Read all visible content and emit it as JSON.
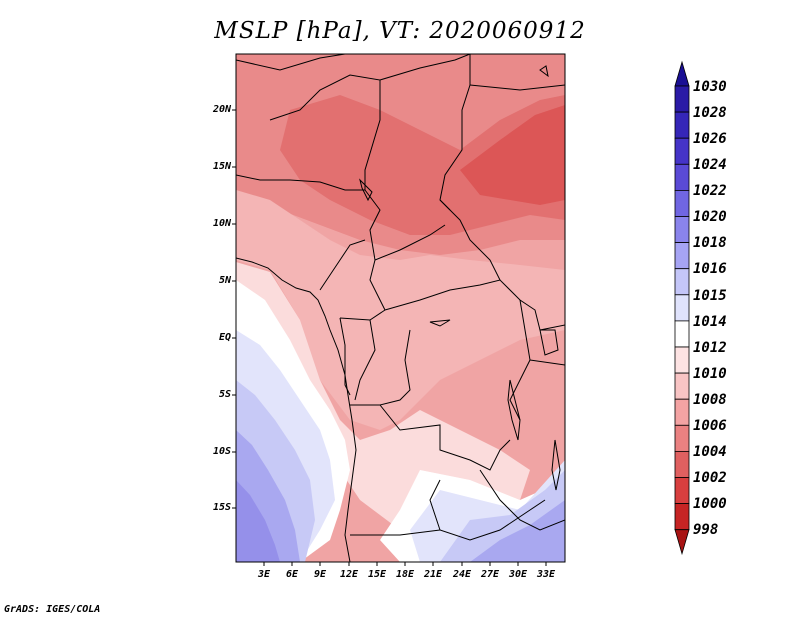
{
  "title": "MSLP [hPa], VT: 2020060912",
  "footer": "GrADS: IGES/COLA",
  "map": {
    "variable": "MSLP",
    "units": "hPa",
    "valid_time": "2020060912",
    "lat_labels": [
      "20N",
      "15N",
      "10N",
      "5N",
      "EQ",
      "5S",
      "10S",
      "15S"
    ],
    "lon_labels": [
      "3E",
      "6E",
      "9E",
      "12E",
      "15E",
      "18E",
      "21E",
      "24E",
      "27E",
      "30E",
      "33E"
    ]
  },
  "colorbar": {
    "levels": [
      "1030",
      "1028",
      "1026",
      "1024",
      "1022",
      "1020",
      "1018",
      "1016",
      "1015",
      "1014",
      "1012",
      "1010",
      "1008",
      "1006",
      "1004",
      "1002",
      "1000",
      "998"
    ],
    "colors": [
      "#1a0f94",
      "#2a1aa6",
      "#3526b8",
      "#4534c8",
      "#5a4ad6",
      "#7066e2",
      "#8a84ec",
      "#a6a4f4",
      "#c4c6f8",
      "#e0e3fc",
      "#ffffff",
      "#fde3e3",
      "#f8c4c4",
      "#f3a3a3",
      "#ea8181",
      "#e06060",
      "#d83f3f",
      "#c62424",
      "#a81414"
    ]
  }
}
